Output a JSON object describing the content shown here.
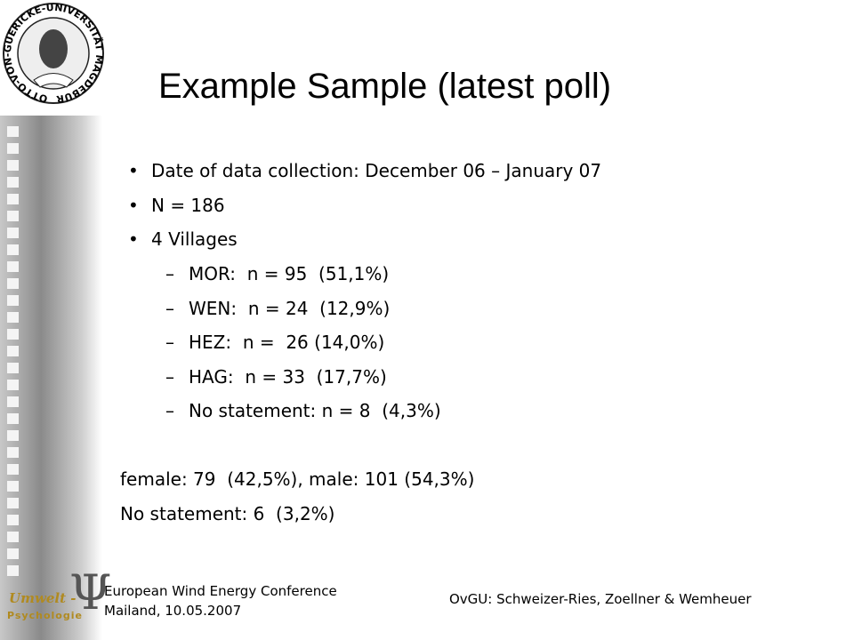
{
  "header": {
    "title": "Example Sample (latest poll)",
    "logo_text": "OTTO-VON-GUERICKE-UNIVERSITÄT MAGDEBURG"
  },
  "bullets": [
    "Date of data collection: December 06 – January 07",
    "N = 186",
    "4 Villages"
  ],
  "sub_bullets": [
    "MOR:  n = 95  (51,1%)",
    "WEN:  n = 24  (12,9%)",
    "HEZ:  n =  26 (14,0%)",
    "HAG:  n = 33  (17,7%)",
    "No statement: n = 8  (4,3%)"
  ],
  "lines": [
    "female: 79  (42,5%), male: 101 (54,3%)",
    "No statement: 6  (3,2%)"
  ],
  "footer": {
    "left": [
      "European Wind Energy Conference",
      "Mailand, 10.05.2007"
    ],
    "right": "OvGU: Schweizer-Ries, Zoellner & Wemheuer",
    "logo": [
      "Umwelt -",
      "Psychologie"
    ]
  }
}
